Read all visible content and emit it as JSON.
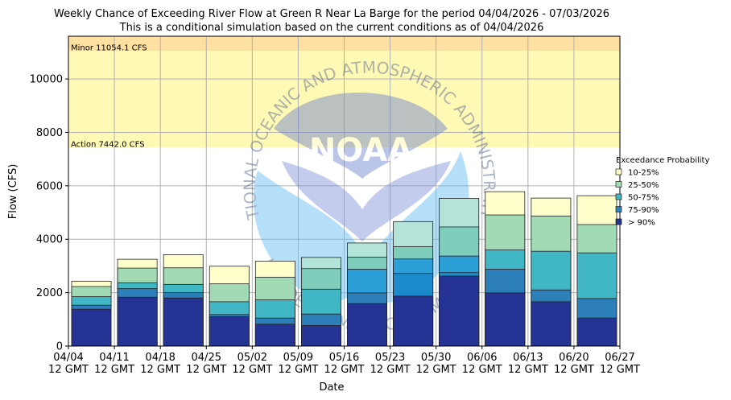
{
  "chart_data": {
    "type": "bar",
    "stacked": true,
    "title": "Weekly Chance of Exceeding River Flow at Green R Near La Barge for the period 04/04/2026 - 07/03/2026",
    "subtitle": "This is a conditional simulation based on the current conditions as of 04/04/2026",
    "xlabel": "Date",
    "ylabel": "Flow (CFS)",
    "ylim": [
      0,
      11600
    ],
    "yticks": [
      0,
      2000,
      4000,
      6000,
      8000,
      10000
    ],
    "xticks": [
      "04/04\n12 GMT",
      "04/11\n12 GMT",
      "04/18\n12 GMT",
      "04/25\n12 GMT",
      "05/02\n12 GMT",
      "05/09\n12 GMT",
      "05/16\n12 GMT",
      "05/23\n12 GMT",
      "05/30\n12 GMT",
      "06/06\n12 GMT",
      "06/13\n12 GMT",
      "06/20\n12 GMT",
      "06/27\n12 GMT"
    ],
    "grid": true,
    "legend_title": "Exceedance Probability",
    "legend_position": "right",
    "series_colors": [
      "#253494",
      "#2c7fb8",
      "#41b6c4",
      "#a1dab4",
      "#ffffcc"
    ],
    "series": [
      {
        "name": "> 90%",
        "levels": [
          1380,
          1830,
          1800,
          1100,
          820,
          770,
          1590,
          1870,
          2620,
          1990,
          1660,
          1050
        ]
      },
      {
        "name": "75-90%",
        "levels": [
          1530,
          2150,
          2000,
          1180,
          1050,
          1200,
          1990,
          2720,
          2750,
          2880,
          2100,
          1780
        ]
      },
      {
        "name": "50-75%",
        "levels": [
          1850,
          2370,
          2310,
          1660,
          1730,
          2130,
          2880,
          3260,
          3370,
          3600,
          3550,
          3490
        ]
      },
      {
        "name": "25-50%",
        "levels": [
          2230,
          2920,
          2930,
          2330,
          2580,
          2900,
          3330,
          3720,
          4460,
          4910,
          4870,
          4550
        ]
      },
      {
        "name": "10-25%",
        "levels": [
          2430,
          3250,
          3420,
          2990,
          3180,
          3320,
          3860,
          4660,
          5530,
          5780,
          5540,
          5630
        ]
      }
    ],
    "bar_colors_per_week": [
      [
        "#253494",
        "#2c7fb8",
        "#41b6c4",
        "#a1dab4",
        "#ffffcc"
      ],
      [
        "#253494",
        "#2c7fb8",
        "#41b6c4",
        "#a1dab4",
        "#ffffcc"
      ],
      [
        "#253494",
        "#2c7fb8",
        "#41b6c4",
        "#a1dab4",
        "#ffffcc"
      ],
      [
        "#253494",
        "#2c7fb8",
        "#41b6c4",
        "#a1dab4",
        "#ffffcc"
      ],
      [
        "#253494",
        "#2c7fb8",
        "#41b6c4",
        "#a1dab4",
        "#ffffcc"
      ],
      [
        "#253494",
        "#2c7fb8",
        "#41b6c4",
        "#7fcdbb",
        "#b3e3d9"
      ],
      [
        "#253494",
        "#2c7fb8",
        "#2c9fd8",
        "#7fcdbb",
        "#b3e3d9"
      ],
      [
        "#253494",
        "#1d8acb",
        "#2c9fd8",
        "#7fcdbb",
        "#b3e3d9"
      ],
      [
        "#253494",
        "#1d8acb",
        "#2c9fd8",
        "#7fcdbb",
        "#b3e3d9"
      ],
      [
        "#253494",
        "#2c7fb8",
        "#41b6c4",
        "#a1dab4",
        "#ffffcc"
      ],
      [
        "#253494",
        "#2c7fb8",
        "#41b6c4",
        "#a1dab4",
        "#ffffcc"
      ],
      [
        "#253494",
        "#2c7fb8",
        "#41b6c4",
        "#a1dab4",
        "#ffffcc"
      ]
    ],
    "thresholds": [
      {
        "label": "Minor 11054.1 CFS",
        "value": 11054.1,
        "band_to": 11600,
        "color": "#ffe0a3"
      },
      {
        "label": "Action 7442.0 CFS",
        "value": 7442.0,
        "band_to": 11054.1,
        "color": "#fff9b6"
      }
    ],
    "watermark": {
      "text_top": "NATIONAL OCEANIC AND ATMOSPHERIC ADMINISTRATION",
      "text_bottom": "U.S. DEPARTMENT OF COMMERCE",
      "logo": "NOAA"
    }
  }
}
